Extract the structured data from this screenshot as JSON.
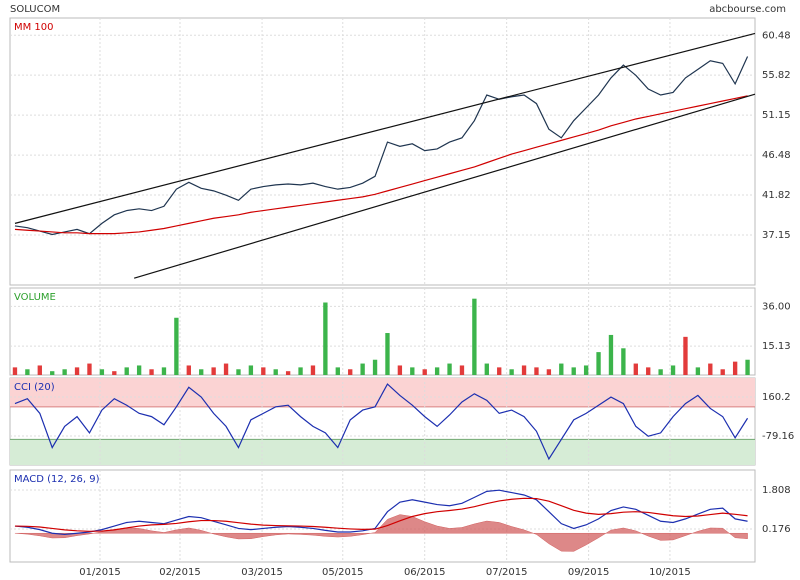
{
  "chart_data": [
    {
      "type": "line",
      "title": "SOLUCOM",
      "source": "abcbourse.com",
      "series": [
        {
          "color": "#1f3550",
          "values": [
            38.2,
            38.0,
            37.6,
            37.2,
            37.5,
            37.8,
            37.3,
            38.5,
            39.5,
            40.0,
            40.2,
            40.0,
            40.5,
            42.5,
            43.3,
            42.6,
            42.3,
            41.8,
            41.2,
            42.5,
            42.8,
            43.0,
            43.1,
            43.0,
            43.2,
            42.8,
            42.5,
            42.7,
            43.2,
            44.0,
            48.0,
            47.5,
            47.8,
            47.0,
            47.2,
            48.0,
            48.5,
            50.5,
            53.5,
            53.0,
            53.3,
            53.5,
            52.5,
            49.5,
            48.5,
            50.5,
            52.0,
            53.5,
            55.5,
            57.0,
            55.8,
            54.2,
            53.5,
            53.8,
            55.5,
            56.5,
            57.5,
            57.2,
            54.8,
            58.0
          ]
        },
        {
          "name": "MM 100",
          "color": "#d00000",
          "values": [
            37.8,
            37.7,
            37.6,
            37.5,
            37.4,
            37.4,
            37.3,
            37.3,
            37.3,
            37.4,
            37.5,
            37.7,
            37.9,
            38.2,
            38.5,
            38.8,
            39.1,
            39.3,
            39.5,
            39.8,
            40.0,
            40.2,
            40.4,
            40.6,
            40.8,
            41.0,
            41.2,
            41.4,
            41.6,
            41.9,
            42.3,
            42.7,
            43.1,
            43.5,
            43.9,
            44.3,
            44.7,
            45.1,
            45.6,
            46.1,
            46.6,
            47.0,
            47.4,
            47.8,
            48.2,
            48.6,
            49.0,
            49.4,
            49.9,
            50.3,
            50.7,
            51.0,
            51.3,
            51.6,
            51.9,
            52.2,
            52.5,
            52.8,
            53.1,
            53.4
          ]
        }
      ],
      "channels": [
        {
          "x": [
            0,
            59.6
          ],
          "y": [
            38.5,
            60.7
          ]
        },
        {
          "x": [
            9.6,
            59.6
          ],
          "y": [
            32.1,
            53.6
          ]
        }
      ],
      "ylim": [
        31.3,
        62.5
      ],
      "yticks": [
        37.15,
        41.82,
        46.48,
        51.15,
        55.82,
        60.48
      ]
    },
    {
      "type": "bar",
      "title": "VOLUME",
      "values": [
        4,
        3,
        5,
        2,
        3,
        4,
        6,
        3,
        2,
        4,
        5,
        3,
        4,
        30,
        5,
        3,
        4,
        6,
        3,
        5,
        4,
        3,
        2,
        4,
        5,
        38,
        4,
        3,
        6,
        8,
        22,
        5,
        4,
        3,
        4,
        6,
        5,
        40,
        6,
        4,
        3,
        5,
        4,
        3,
        6,
        4,
        5,
        12,
        21,
        14,
        6,
        4,
        3,
        5,
        20,
        4,
        6,
        3,
        7,
        8
      ],
      "colors": [
        "#e23b3b",
        "#3cb44b",
        "#e23b3b",
        "#3cb44b",
        "#3cb44b",
        "#e23b3b",
        "#e23b3b",
        "#3cb44b",
        "#e23b3b",
        "#3cb44b",
        "#3cb44b",
        "#e23b3b",
        "#3cb44b",
        "#3cb44b",
        "#e23b3b",
        "#3cb44b",
        "#e23b3b",
        "#e23b3b",
        "#3cb44b",
        "#3cb44b",
        "#e23b3b",
        "#3cb44b",
        "#e23b3b",
        "#3cb44b",
        "#e23b3b",
        "#3cb44b",
        "#3cb44b",
        "#e23b3b",
        "#3cb44b",
        "#3cb44b",
        "#3cb44b",
        "#e23b3b",
        "#3cb44b",
        "#e23b3b",
        "#3cb44b",
        "#3cb44b",
        "#e23b3b",
        "#3cb44b",
        "#3cb44b",
        "#e23b3b",
        "#3cb44b",
        "#e23b3b",
        "#e23b3b",
        "#e23b3b",
        "#3cb44b",
        "#3cb44b",
        "#3cb44b",
        "#3cb44b",
        "#3cb44b",
        "#3cb44b",
        "#e23b3b",
        "#e23b3b",
        "#3cb44b",
        "#3cb44b",
        "#e23b3b",
        "#3cb44b",
        "#e23b3b",
        "#e23b3b",
        "#e23b3b",
        "#3cb44b"
      ],
      "ylim": [
        0,
        45.6
      ],
      "yticks": [
        15.13,
        {
          "value": 36,
          "label": "36.00"
        }
      ]
    },
    {
      "type": "line",
      "title": "CCI (20)",
      "series": [
        {
          "color": "#1c2fb0",
          "values": [
            120,
            150,
            60,
            -150,
            -20,
            40,
            -60,
            80,
            150,
            110,
            60,
            40,
            -10,
            100,
            220,
            160,
            60,
            -20,
            -150,
            20,
            60,
            100,
            110,
            40,
            -20,
            -60,
            -150,
            20,
            80,
            100,
            240,
            170,
            110,
            40,
            -20,
            50,
            130,
            180,
            140,
            60,
            80,
            40,
            -50,
            -220,
            -100,
            20,
            60,
            110,
            160,
            120,
            -20,
            -80,
            -60,
            40,
            120,
            170,
            90,
            40,
            -90,
            30
          ]
        }
      ],
      "bands": [
        {
          "value": 100,
          "color": "#fbd3d3",
          "line": "#d98080",
          "above": true
        },
        {
          "value": -100,
          "color": "#d6ecd6",
          "line": "#70a870",
          "above": false
        }
      ],
      "ylim": [
        -257,
        277
      ],
      "yticks": [
        -79.16,
        160.2
      ]
    },
    {
      "type": "line",
      "title": "MACD (12, 26, 9)",
      "series": [
        {
          "style": "area",
          "color": "#d26060",
          "values": [
            0,
            -0.04,
            -0.11,
            -0.2,
            -0.19,
            -0.1,
            -0.03,
            0.06,
            0.16,
            0.23,
            0.2,
            0.1,
            0.03,
            0.14,
            0.22,
            0.12,
            -0.03,
            -0.15,
            -0.24,
            -0.23,
            -0.14,
            -0.07,
            -0.03,
            -0.05,
            -0.08,
            -0.13,
            -0.16,
            -0.13,
            -0.06,
            0.03,
            0.58,
            0.78,
            0.7,
            0.48,
            0.3,
            0.2,
            0.24,
            0.39,
            0.51,
            0.45,
            0.28,
            0.14,
            -0.05,
            -0.44,
            -0.75,
            -0.76,
            -0.49,
            -0.19,
            0.13,
            0.22,
            0.1,
            -0.12,
            -0.3,
            -0.28,
            -0.1,
            0.08,
            0.22,
            0.21,
            -0.19,
            -0.23
          ]
        },
        {
          "color": "#1c2fb0",
          "values": [
            0.3,
            0.25,
            0.15,
            0.0,
            -0.05,
            0.0,
            0.05,
            0.15,
            0.3,
            0.45,
            0.5,
            0.45,
            0.4,
            0.55,
            0.7,
            0.65,
            0.5,
            0.35,
            0.2,
            0.15,
            0.2,
            0.25,
            0.28,
            0.25,
            0.2,
            0.12,
            0.05,
            0.05,
            0.1,
            0.2,
            0.9,
            1.3,
            1.4,
            1.3,
            1.2,
            1.15,
            1.25,
            1.5,
            1.75,
            1.8,
            1.7,
            1.6,
            1.4,
            0.9,
            0.4,
            0.2,
            0.35,
            0.6,
            0.95,
            1.1,
            1.0,
            0.75,
            0.5,
            0.45,
            0.6,
            0.8,
            1.0,
            1.05,
            0.6,
            0.5
          ]
        },
        {
          "color": "#d00000",
          "values": [
            0.3,
            0.29,
            0.26,
            0.2,
            0.14,
            0.1,
            0.08,
            0.09,
            0.14,
            0.22,
            0.3,
            0.35,
            0.37,
            0.41,
            0.48,
            0.53,
            0.53,
            0.5,
            0.44,
            0.38,
            0.34,
            0.32,
            0.31,
            0.3,
            0.28,
            0.25,
            0.21,
            0.18,
            0.16,
            0.17,
            0.32,
            0.52,
            0.7,
            0.82,
            0.9,
            0.95,
            1.01,
            1.11,
            1.24,
            1.35,
            1.42,
            1.46,
            1.45,
            1.34,
            1.15,
            0.96,
            0.84,
            0.79,
            0.82,
            0.88,
            0.9,
            0.87,
            0.8,
            0.73,
            0.7,
            0.72,
            0.78,
            0.84,
            0.79,
            0.73
          ]
        }
      ],
      "ylim": [
        -1.204,
        2.645
      ],
      "yticks": [
        0.176,
        1.808
      ],
      "xlim": [
        -0.4,
        59.6
      ],
      "xticks": [
        {
          "value": 6.85,
          "label": "01/2015"
        },
        {
          "value": 13.29,
          "label": "02/2015"
        },
        {
          "value": 19.9,
          "label": "03/2015"
        },
        {
          "value": 26.4,
          "label": "05/2015"
        },
        {
          "value": 33.0,
          "label": "06/2015"
        },
        {
          "value": 39.6,
          "label": "07/2015"
        },
        {
          "value": 46.2,
          "label": "09/2015"
        },
        {
          "value": 52.75,
          "label": "10/2015"
        }
      ]
    }
  ]
}
